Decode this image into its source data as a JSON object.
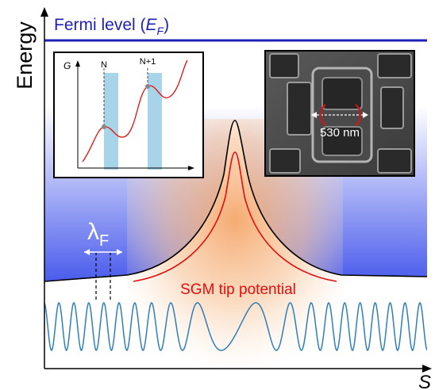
{
  "axes": {
    "y_label": "Energy",
    "x_label": "S"
  },
  "fermi": {
    "text": "Fermi level (",
    "symbol": "E",
    "subscript": "F",
    "close": ")"
  },
  "wavelength": {
    "symbol": "λ",
    "subscript": "F"
  },
  "tip_label": "SGM tip potential",
  "inset_graph": {
    "y_label": "G",
    "peak_1": "N",
    "peak_2": "N+1"
  },
  "inset_image": {
    "scale_label": "530 nm"
  },
  "colors": {
    "fermi_line": "#1f1fb4",
    "potential_outline": "#000000",
    "tip_curve": "#e01010",
    "wave": "#2e7fb8",
    "band_top": "#ffffff",
    "band_bottom": "#4a5cec",
    "tip_glow": "#f5a66a",
    "inset_highlight": "#a8d4ea"
  }
}
